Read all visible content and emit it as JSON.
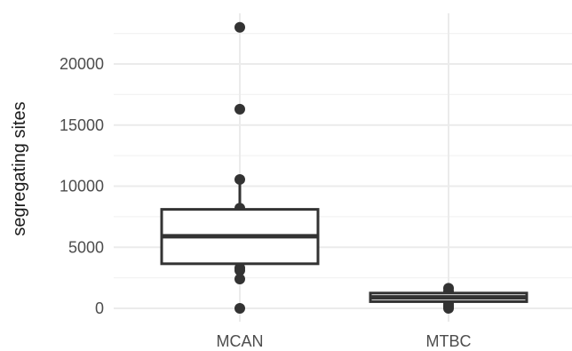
{
  "chart_data": {
    "type": "box",
    "title": "",
    "xlabel": "",
    "ylabel": "segregating sites",
    "ylim": [
      -1000,
      24000
    ],
    "grid": true,
    "categories": [
      "MCAN",
      "MTBC"
    ],
    "y_ticks": [
      0,
      5000,
      10000,
      15000,
      20000
    ],
    "y_tick_labels": [
      "0",
      "5000",
      "10000",
      "15000",
      "20000"
    ],
    "boxes": [
      {
        "name": "MCAN",
        "q1": 3650,
        "median": 5900,
        "q3": 8100,
        "whisker_low": 2400,
        "whisker_high": 10550,
        "points": [
          0,
          2400,
          3100,
          3300,
          8200,
          10550,
          16300,
          23000
        ]
      },
      {
        "name": "MTBC",
        "q1": 550,
        "median": 900,
        "q3": 1250,
        "whisker_low": 0,
        "whisker_high": 1650,
        "points": [
          0,
          150,
          300,
          500,
          1400,
          1650
        ]
      }
    ],
    "colors": {
      "box_fill": "#ffffff",
      "box_stroke": "#333333",
      "point": "#333333",
      "grid_major": "#ebebeb",
      "grid_minor": "#f3f3f3"
    }
  }
}
